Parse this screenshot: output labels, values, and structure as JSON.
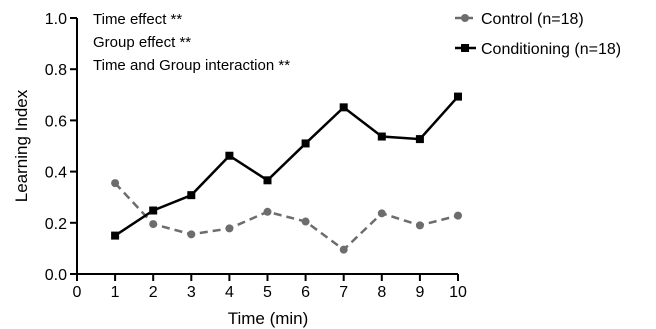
{
  "chart_data": {
    "type": "line",
    "xlabel": "Time (min)",
    "ylabel": "Learning Index",
    "xlim": [
      0,
      10
    ],
    "ylim": [
      0,
      1.0
    ],
    "x_ticks": [
      "0",
      "1",
      "2",
      "3",
      "4",
      "5",
      "6",
      "7",
      "8",
      "9",
      "10"
    ],
    "y_ticks": [
      "0.0",
      "0.2",
      "0.4",
      "0.6",
      "0.8",
      "1.0"
    ],
    "x": [
      1,
      2,
      3,
      4,
      5,
      6,
      7,
      8,
      9,
      10
    ],
    "series": [
      {
        "name": "Control (n=18)",
        "values": [
          0.355,
          0.195,
          0.155,
          0.178,
          0.243,
          0.205,
          0.095,
          0.237,
          0.19,
          0.228
        ],
        "color": "#6d6d6d",
        "marker": "circle",
        "line_style": "dashed"
      },
      {
        "name": "Conditioning (n=18)",
        "values": [
          0.15,
          0.248,
          0.308,
          0.462,
          0.366,
          0.51,
          0.651,
          0.537,
          0.527,
          0.693
        ],
        "color": "#000000",
        "marker": "square",
        "line_style": "solid"
      }
    ],
    "annotations": [
      "Time effect **",
      "Group effect **",
      "Time and Group interaction **"
    ],
    "legend_position": "top-right",
    "grid": false
  }
}
